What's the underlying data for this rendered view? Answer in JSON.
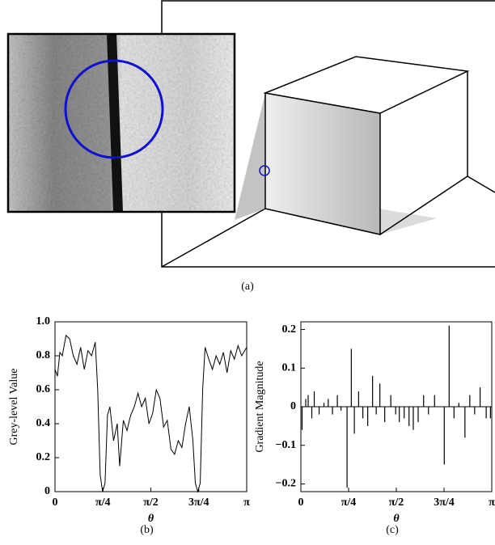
{
  "figure": {
    "caption_a": "(a)"
  },
  "chart_data": [
    {
      "type": "line",
      "caption": "(b)",
      "y_label": "Grey-level Value",
      "x_label": "θ",
      "xlim": [
        0,
        3.14159
      ],
      "ylim": [
        0,
        1
      ],
      "xticks": [
        0,
        {
          "value": 0.7854,
          "label": "π/4"
        },
        {
          "value": 1.5708,
          "label": "π/2"
        },
        {
          "value": 2.3562,
          "label": "3π/4"
        },
        {
          "value": 3.14159,
          "label": "π"
        }
      ],
      "yticks": [
        0,
        0.2,
        0.4,
        0.6,
        0.8,
        {
          "value": 1,
          "label": "1.0"
        }
      ],
      "series": [
        {
          "color": "#000000",
          "x": [
            0,
            0.04,
            0.08,
            0.12,
            0.18,
            0.24,
            0.3,
            0.36,
            0.42,
            0.48,
            0.54,
            0.6,
            0.66,
            0.7,
            0.74,
            0.78,
            0.82,
            0.86,
            0.9,
            0.96,
            1.02,
            1.06,
            1.12,
            1.18,
            1.24,
            1.3,
            1.36,
            1.42,
            1.48,
            1.54,
            1.6,
            1.66,
            1.72,
            1.78,
            1.84,
            1.9,
            1.96,
            2.02,
            2.08,
            2.14,
            2.2,
            2.26,
            2.3,
            2.34,
            2.38,
            2.42,
            2.46,
            2.52,
            2.58,
            2.64,
            2.7,
            2.76,
            2.82,
            2.88,
            2.94,
            3.0,
            3.06,
            3.14159
          ],
          "values": [
            0.72,
            0.68,
            0.82,
            0.8,
            0.92,
            0.9,
            0.8,
            0.75,
            0.85,
            0.72,
            0.83,
            0.8,
            0.88,
            0.6,
            0.1,
            0,
            0.05,
            0.45,
            0.5,
            0.3,
            0.4,
            0.15,
            0.42,
            0.36,
            0.45,
            0.5,
            0.58,
            0.5,
            0.55,
            0.4,
            0.46,
            0.6,
            0.55,
            0.38,
            0.42,
            0.25,
            0.22,
            0.3,
            0.26,
            0.4,
            0.5,
            0.3,
            0.05,
            0,
            0.05,
            0.6,
            0.85,
            0.78,
            0.72,
            0.8,
            0.75,
            0.82,
            0.7,
            0.83,
            0.78,
            0.86,
            0.8,
            0.85
          ]
        }
      ]
    },
    {
      "type": "stem",
      "caption": "(c)",
      "y_label": "Gradient Magnitude",
      "x_label": "θ",
      "xlim": [
        0,
        3.14159
      ],
      "ylim": [
        -0.22,
        0.22
      ],
      "xticks": [
        0,
        {
          "value": 0.7854,
          "label": "π/4"
        },
        {
          "value": 1.5708,
          "label": "π/2"
        },
        {
          "value": 2.3562,
          "label": "3π/4"
        },
        {
          "value": 3.14159,
          "label": "π"
        }
      ],
      "yticks": [
        {
          "value": -0.2,
          "label": "−0.2"
        },
        {
          "value": -0.1,
          "label": "−0.1"
        },
        0,
        0.1,
        0.2
      ],
      "series": [
        {
          "color": "#000000",
          "x": [
            0.02,
            0.08,
            0.12,
            0.18,
            0.22,
            0.3,
            0.38,
            0.45,
            0.52,
            0.6,
            0.66,
            0.76,
            0.83,
            0.88,
            0.95,
            1.02,
            1.1,
            1.18,
            1.24,
            1.3,
            1.38,
            1.48,
            1.56,
            1.62,
            1.7,
            1.78,
            1.85,
            1.93,
            2.02,
            2.1,
            2.2,
            2.36,
            2.44,
            2.52,
            2.6,
            2.7,
            2.78,
            2.86,
            2.95,
            3.05,
            3.12
          ],
          "values": [
            -0.06,
            0.02,
            0.03,
            -0.03,
            0.04,
            -0.02,
            0.01,
            0.02,
            -0.02,
            0.03,
            -0.01,
            -0.21,
            0.15,
            -0.07,
            0.04,
            -0.03,
            -0.05,
            0.08,
            -0.02,
            0.06,
            -0.04,
            0.03,
            -0.02,
            -0.04,
            -0.03,
            -0.05,
            -0.06,
            -0.04,
            0.03,
            -0.02,
            0.03,
            -0.15,
            0.21,
            -0.03,
            0.01,
            -0.08,
            0.03,
            -0.02,
            0.05,
            -0.03,
            -0.03
          ]
        }
      ]
    }
  ]
}
